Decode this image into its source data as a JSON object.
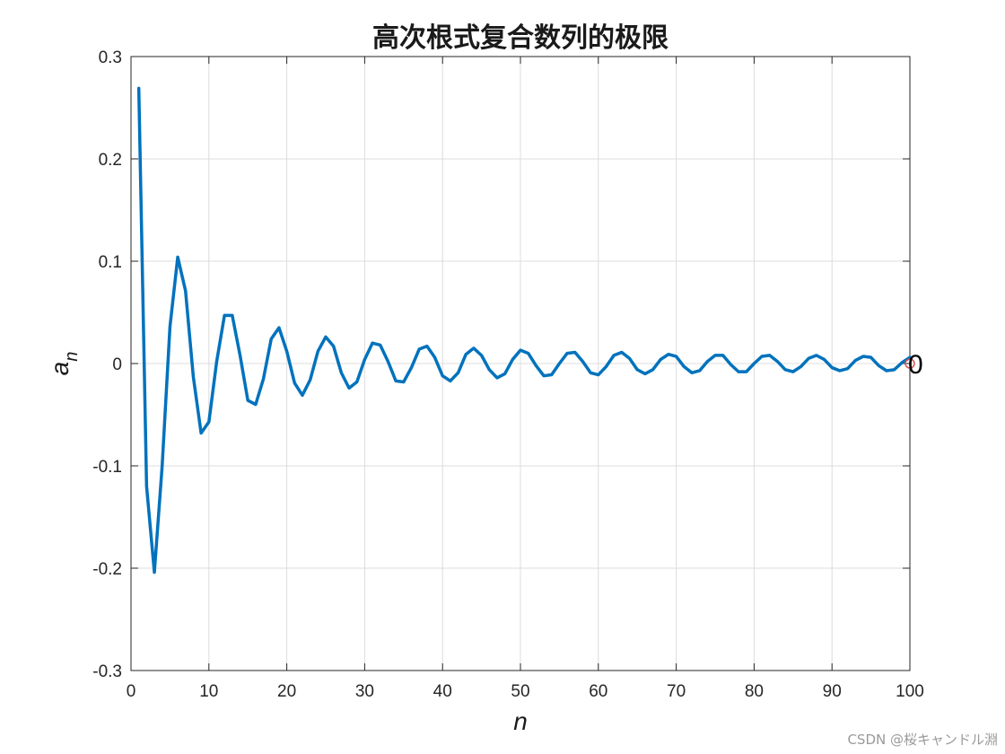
{
  "watermark": "CSDN @桜キャンドル淵",
  "colors": {
    "line": "#0072BD",
    "grid": "#dcdcdc",
    "axis": "#262626",
    "marker": "#d9534f"
  },
  "chart_data": {
    "type": "line",
    "title": "高次根式复合数列的极限",
    "xlabel": "n",
    "ylabel_main": "a",
    "ylabel_sub": "n",
    "xlim": [
      0,
      100
    ],
    "ylim": [
      -0.3,
      0.3
    ],
    "xticks": [
      0,
      10,
      20,
      30,
      40,
      50,
      60,
      70,
      80,
      90,
      100
    ],
    "yticks": [
      -0.3,
      -0.2,
      -0.1,
      0,
      0.1,
      0.2,
      0.3
    ],
    "ytick_labels": [
      "-0.3",
      "-0.2",
      "-0.1",
      "0",
      "0.1",
      "0.2",
      "0.3"
    ],
    "grid": true,
    "end_marker_label": "0",
    "series": [
      {
        "x": [
          1,
          2,
          3,
          4,
          5,
          6,
          7,
          8,
          9,
          10,
          11,
          12,
          13,
          14,
          15,
          16,
          17,
          18,
          19,
          20,
          21,
          22,
          23,
          24,
          25,
          26,
          27,
          28,
          29,
          30,
          31,
          32,
          33,
          34,
          35,
          36,
          37,
          38,
          39,
          40,
          41,
          42,
          43,
          44,
          45,
          46,
          47,
          48,
          49,
          50,
          51,
          52,
          53,
          54,
          55,
          56,
          57,
          58,
          59,
          60,
          61,
          62,
          63,
          64,
          65,
          66,
          67,
          68,
          69,
          70,
          71,
          72,
          73,
          74,
          75,
          76,
          77,
          78,
          79,
          80,
          81,
          82,
          83,
          84,
          85,
          86,
          87,
          88,
          89,
          90,
          91,
          92,
          93,
          94,
          95,
          96,
          97,
          98,
          99,
          100
        ],
        "values": [
          0.269,
          -0.12,
          -0.204,
          -0.1,
          0.036,
          0.104,
          0.071,
          -0.013,
          -0.068,
          -0.057,
          0.002,
          0.047,
          0.047,
          0.008,
          -0.036,
          -0.04,
          -0.015,
          0.024,
          0.035,
          0.012,
          -0.019,
          -0.031,
          -0.016,
          0.012,
          0.026,
          0.017,
          -0.009,
          -0.024,
          -0.018,
          0.004,
          0.02,
          0.018,
          0.002,
          -0.017,
          -0.018,
          -0.004,
          0.014,
          0.017,
          0.006,
          -0.012,
          -0.017,
          -0.009,
          0.009,
          0.015,
          0.008,
          -0.006,
          -0.014,
          -0.01,
          0.004,
          0.013,
          0.01,
          -0.002,
          -0.012,
          -0.011,
          0.0,
          0.01,
          0.011,
          0.002,
          -0.009,
          -0.011,
          -0.003,
          0.008,
          0.011,
          0.005,
          -0.006,
          -0.01,
          -0.006,
          0.004,
          0.009,
          0.007,
          -0.003,
          -0.009,
          -0.007,
          0.002,
          0.008,
          0.008,
          -0.001,
          -0.008,
          -0.008,
          0.0,
          0.007,
          0.008,
          0.002,
          -0.006,
          -0.008,
          -0.003,
          0.005,
          0.008,
          0.004,
          -0.004,
          -0.007,
          -0.005,
          0.003,
          0.007,
          0.006,
          -0.002,
          -0.007,
          -0.006,
          0.001,
          0.006
        ]
      }
    ]
  }
}
